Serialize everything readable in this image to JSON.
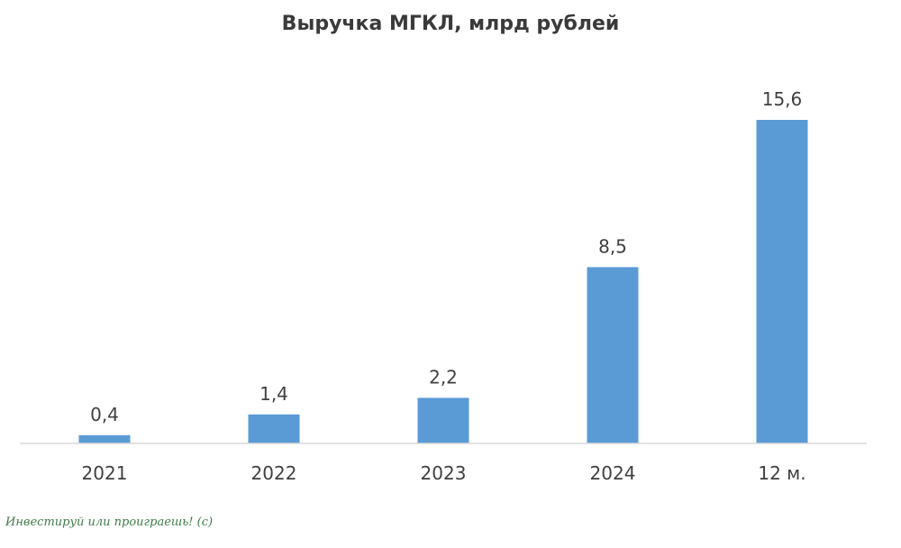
{
  "chart_data": {
    "type": "bar",
    "title": "Выручка МГКЛ, млрд рублей",
    "categories": [
      "2021",
      "2022",
      "2023",
      "2024",
      "12 м."
    ],
    "values": [
      0.4,
      1.4,
      2.2,
      8.5,
      15.6
    ],
    "value_labels": [
      "0,4",
      "1,4",
      "2,2",
      "8,5",
      "15,6"
    ],
    "ylim": [
      0,
      15.6
    ],
    "grid": false,
    "legend": "none",
    "bar_color": "#5b9bd5",
    "axis_color": "#d9d9d9",
    "text_color": "#404040"
  },
  "watermark": "Инвестируй или проиграешь! (с)"
}
